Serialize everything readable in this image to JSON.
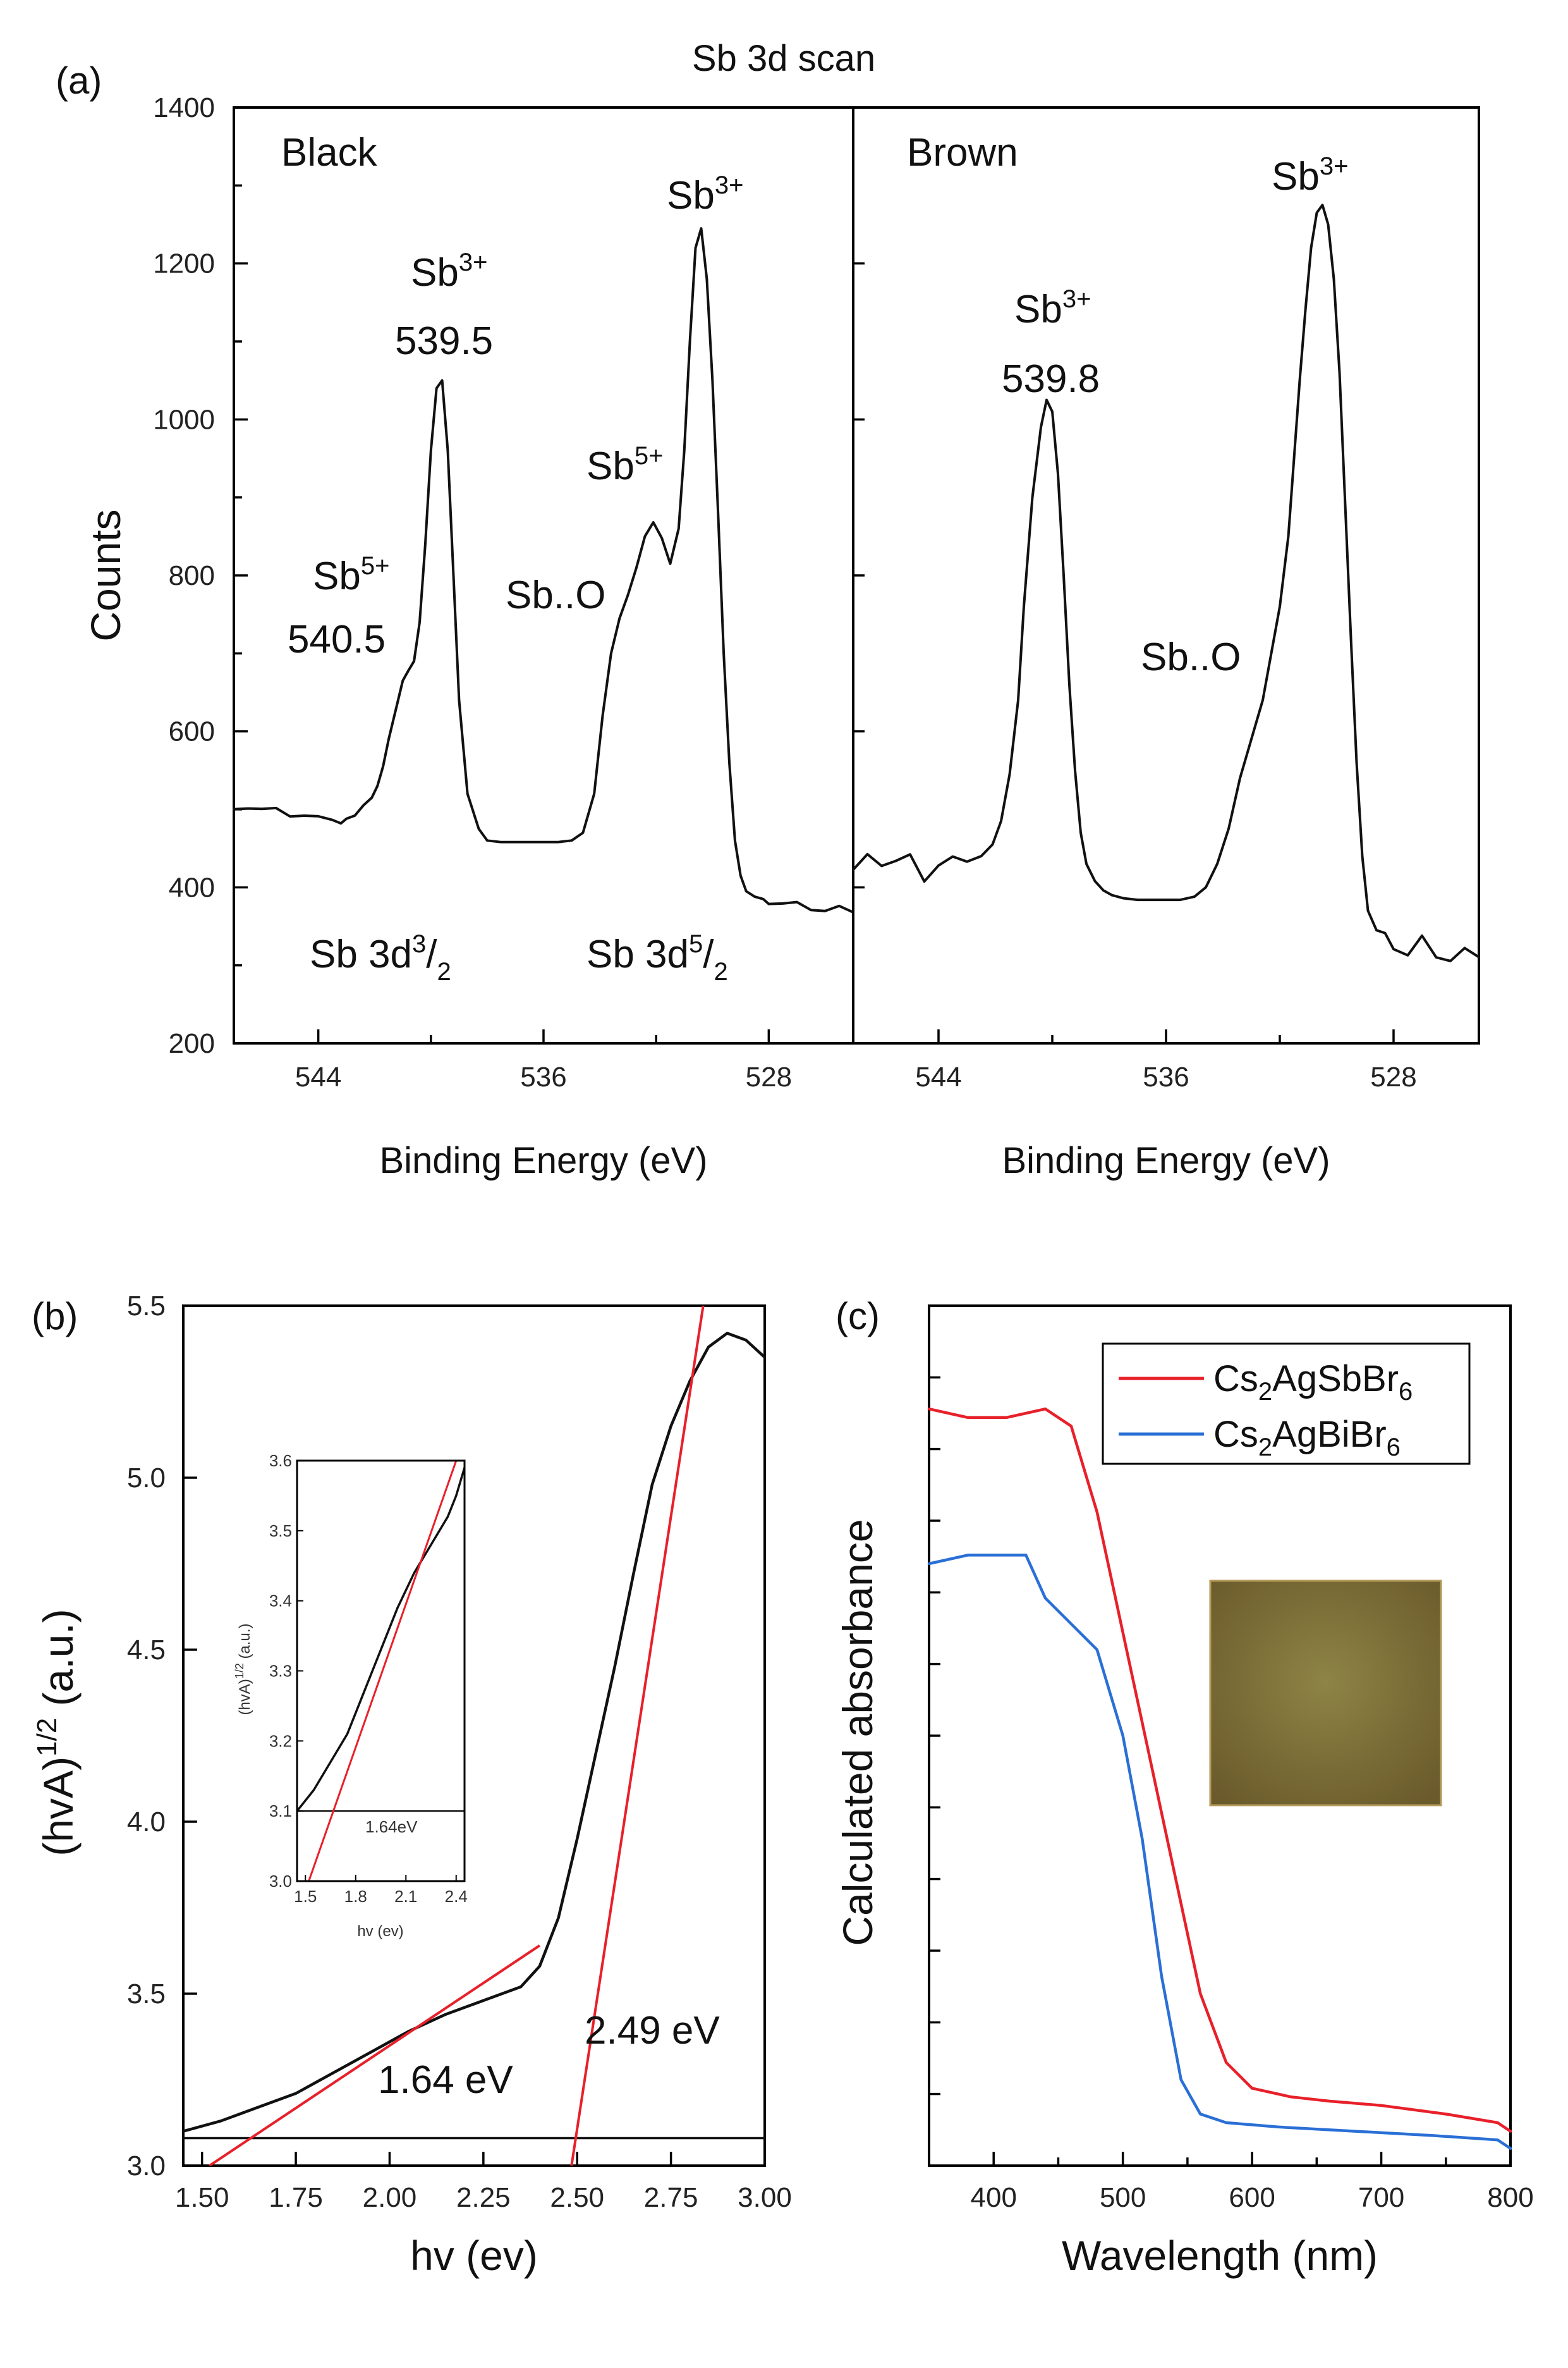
{
  "colors": {
    "sbbr": "#e8202a",
    "bibr": "#2a6fd6",
    "fit": "#e8202a",
    "curve": "#111111",
    "swatch": "#8a7a40"
  },
  "figure": {
    "title_a": "Sb 3d scan",
    "label_a": "(a)",
    "label_b": "(b)",
    "label_c": "(c)"
  },
  "chart_data": [
    {
      "type": "line",
      "panel": "a-black",
      "title": "Black",
      "xlabel": "Binding Energy (eV)",
      "ylabel": "Counts",
      "xlim": [
        547,
        525
      ],
      "ylim": [
        200,
        1400
      ],
      "xticks": [
        "544",
        "536",
        "528"
      ],
      "yticks": [
        "200",
        "400",
        "600",
        "800",
        "1000",
        "1200",
        "1400"
      ],
      "series": [
        {
          "name": "Black",
          "x": [
            547,
            546.5,
            546,
            545.5,
            545,
            544.5,
            544,
            543.5,
            543.2,
            543,
            542.7,
            542.4,
            542.1,
            541.9,
            541.7,
            541.5,
            541.2,
            541,
            540.8,
            540.6,
            540.4,
            540.2,
            540,
            539.8,
            539.6,
            539.4,
            539.2,
            539,
            538.7,
            538.3,
            538,
            537.5,
            537,
            536.5,
            536,
            535.5,
            535,
            534.6,
            534.2,
            533.9,
            533.6,
            533.3,
            533,
            532.7,
            532.4,
            532.1,
            531.8,
            531.5,
            531.2,
            531,
            530.8,
            530.6,
            530.4,
            530.2,
            530,
            529.8,
            529.6,
            529.4,
            529.2,
            529,
            528.8,
            528.5,
            528.2,
            528,
            527.5,
            527,
            526.5,
            526,
            525.5,
            525
          ],
          "y": [
            500,
            502,
            495,
            498,
            490,
            492,
            485,
            492,
            482,
            488,
            492,
            505,
            515,
            530,
            555,
            590,
            635,
            665,
            678,
            690,
            740,
            840,
            960,
            1040,
            1050,
            960,
            800,
            640,
            520,
            475,
            460,
            458,
            458,
            458,
            458,
            458,
            460,
            470,
            520,
            620,
            700,
            745,
            775,
            810,
            850,
            868,
            848,
            815,
            860,
            960,
            1100,
            1220,
            1245,
            1180,
            1050,
            880,
            700,
            560,
            460,
            415,
            395,
            388,
            385,
            380,
            378,
            378,
            375,
            372,
            370,
            368
          ]
        }
      ],
      "annotations": [
        {
          "text_top": "Sb5+",
          "text_val": "540.5"
        },
        {
          "text_top": "Sb3+",
          "text_val": "539.5"
        },
        {
          "text": "Sb..O"
        },
        {
          "text": "Sb5+"
        },
        {
          "text": "Sb3+"
        },
        {
          "text": "Sb 3d3/2"
        },
        {
          "text": "Sb 3d5/2"
        }
      ]
    },
    {
      "type": "line",
      "panel": "a-brown",
      "title": "Brown",
      "xlabel": "Binding Energy (eV)",
      "xlim": [
        547,
        525
      ],
      "ylim": [
        200,
        1400
      ],
      "xticks": [
        "544",
        "536",
        "528"
      ],
      "series": [
        {
          "name": "Brown",
          "x": [
            547,
            546.5,
            546,
            545.5,
            545,
            544.5,
            544,
            543.5,
            543,
            542.5,
            542.1,
            541.8,
            541.5,
            541.2,
            541,
            540.7,
            540.4,
            540.2,
            540,
            539.8,
            539.6,
            539.4,
            539.2,
            539,
            538.8,
            538.5,
            538.2,
            537.9,
            537.5,
            537,
            536.5,
            536,
            535.5,
            535,
            534.6,
            534.2,
            533.8,
            533.4,
            533,
            532.6,
            532.3,
            532,
            531.7,
            531.5,
            531.3,
            531.1,
            530.9,
            530.7,
            530.5,
            530.3,
            530.1,
            529.9,
            529.7,
            529.5,
            529.3,
            529.1,
            528.9,
            528.6,
            528.3,
            528,
            527.5,
            527,
            526.5,
            526,
            525.5,
            525
          ],
          "y": [
            430,
            445,
            440,
            435,
            430,
            420,
            420,
            425,
            430,
            440,
            455,
            485,
            545,
            640,
            760,
            900,
            990,
            1025,
            1010,
            930,
            800,
            660,
            550,
            470,
            430,
            408,
            396,
            390,
            386,
            384,
            384,
            384,
            384,
            388,
            400,
            430,
            475,
            540,
            590,
            640,
            700,
            760,
            850,
            950,
            1050,
            1140,
            1220,
            1265,
            1275,
            1250,
            1180,
            1060,
            890,
            720,
            560,
            440,
            370,
            345,
            335,
            330,
            325,
            325,
            318,
            312,
            308,
            305
          ]
        }
      ],
      "annotations": [
        {
          "text_top": "Sb3+",
          "text_val": "539.8"
        },
        {
          "text": "Sb..O"
        },
        {
          "text": "Sb3+"
        }
      ]
    },
    {
      "type": "line",
      "panel": "b",
      "xlabel": "hv (ev)",
      "ylabel": "(hvA)1/2 (a.u.)",
      "xlim": [
        1.45,
        3.0
      ],
      "ylim": [
        3.0,
        5.5
      ],
      "xticks": [
        "1.50",
        "1.75",
        "2.00",
        "2.25",
        "2.50",
        "2.75",
        "3.00"
      ],
      "yticks": [
        "3.0",
        "3.5",
        "4.0",
        "4.5",
        "5.0",
        "5.5"
      ],
      "series": [
        {
          "name": "data",
          "x": [
            1.45,
            1.55,
            1.65,
            1.75,
            1.85,
            1.95,
            2.05,
            2.15,
            2.25,
            2.35,
            2.4,
            2.45,
            2.5,
            2.55,
            2.6,
            2.65,
            2.7,
            2.75,
            2.8,
            2.85,
            2.9,
            2.95,
            3.0
          ],
          "y": [
            3.1,
            3.13,
            3.17,
            3.21,
            3.27,
            3.33,
            3.39,
            3.44,
            3.48,
            3.52,
            3.58,
            3.72,
            3.95,
            4.2,
            4.45,
            4.72,
            4.98,
            5.15,
            5.28,
            5.38,
            5.42,
            5.4,
            5.35
          ]
        },
        {
          "name": "fit 1.64 eV",
          "x": [
            1.52,
            2.4
          ],
          "y": [
            3.0,
            3.64
          ]
        },
        {
          "name": "fit 2.49 eV",
          "x": [
            2.485,
            2.85
          ],
          "y": [
            3.0,
            5.6
          ]
        },
        {
          "name": "baseline",
          "x": [
            1.45,
            3.0
          ],
          "y": [
            3.08,
            3.08
          ]
        }
      ],
      "annotations": [
        {
          "text": "1.64 eV"
        },
        {
          "text": "2.49 eV"
        }
      ],
      "inset": {
        "xlabel": "hv (ev)",
        "ylabel": "(hvA)1/2 (a.u.)",
        "xlim": [
          1.45,
          2.45
        ],
        "ylim": [
          3.0,
          3.6
        ],
        "xticks": [
          "1.5",
          "1.8",
          "2.1",
          "2.4"
        ],
        "yticks": [
          "3.0",
          "3.1",
          "3.2",
          "3.3",
          "3.4",
          "3.5",
          "3.6"
        ],
        "label": "1.64eV",
        "series": [
          {
            "name": "data",
            "x": [
              1.45,
              1.55,
              1.65,
              1.75,
              1.85,
              1.95,
              2.05,
              2.15,
              2.25,
              2.35,
              2.4,
              2.45
            ],
            "y": [
              3.1,
              3.13,
              3.17,
              3.21,
              3.27,
              3.33,
              3.39,
              3.44,
              3.48,
              3.52,
              3.55,
              3.59
            ]
          },
          {
            "name": "fit",
            "x": [
              1.52,
              2.4
            ],
            "y": [
              3.0,
              3.6
            ]
          },
          {
            "name": "baseline",
            "x": [
              1.45,
              2.45
            ],
            "y": [
              3.1,
              3.1
            ]
          }
        ]
      }
    },
    {
      "type": "line",
      "panel": "c",
      "xlabel": "Wavelength (nm)",
      "ylabel": "Calculated absorbance",
      "xlim": [
        350,
        800
      ],
      "ylim": [
        0,
        1
      ],
      "xticks": [
        "400",
        "500",
        "600",
        "700",
        "800"
      ],
      "legend_position": "top-right",
      "series": [
        {
          "name": "Cs2AgSbBr6",
          "x": [
            350,
            380,
            410,
            440,
            460,
            480,
            500,
            520,
            540,
            560,
            580,
            600,
            630,
            660,
            700,
            750,
            790,
            800
          ],
          "y": [
            0.88,
            0.87,
            0.87,
            0.88,
            0.86,
            0.76,
            0.62,
            0.48,
            0.34,
            0.2,
            0.12,
            0.09,
            0.08,
            0.075,
            0.07,
            0.06,
            0.05,
            0.04
          ]
        },
        {
          "name": "Cs2AgBiBr6",
          "x": [
            350,
            380,
            410,
            425,
            440,
            460,
            480,
            500,
            515,
            530,
            545,
            560,
            580,
            620,
            680,
            740,
            790,
            800
          ],
          "y": [
            0.7,
            0.71,
            0.71,
            0.71,
            0.66,
            0.63,
            0.6,
            0.5,
            0.38,
            0.22,
            0.1,
            0.06,
            0.05,
            0.045,
            0.04,
            0.035,
            0.03,
            0.02
          ]
        }
      ],
      "legend": [
        {
          "base": "Cs",
          "sub1": "2",
          "mid": "AgSbBr",
          "sub2": "6"
        },
        {
          "base": "Cs",
          "sub1": "2",
          "mid": "AgBiBr",
          "sub2": "6"
        }
      ]
    }
  ]
}
